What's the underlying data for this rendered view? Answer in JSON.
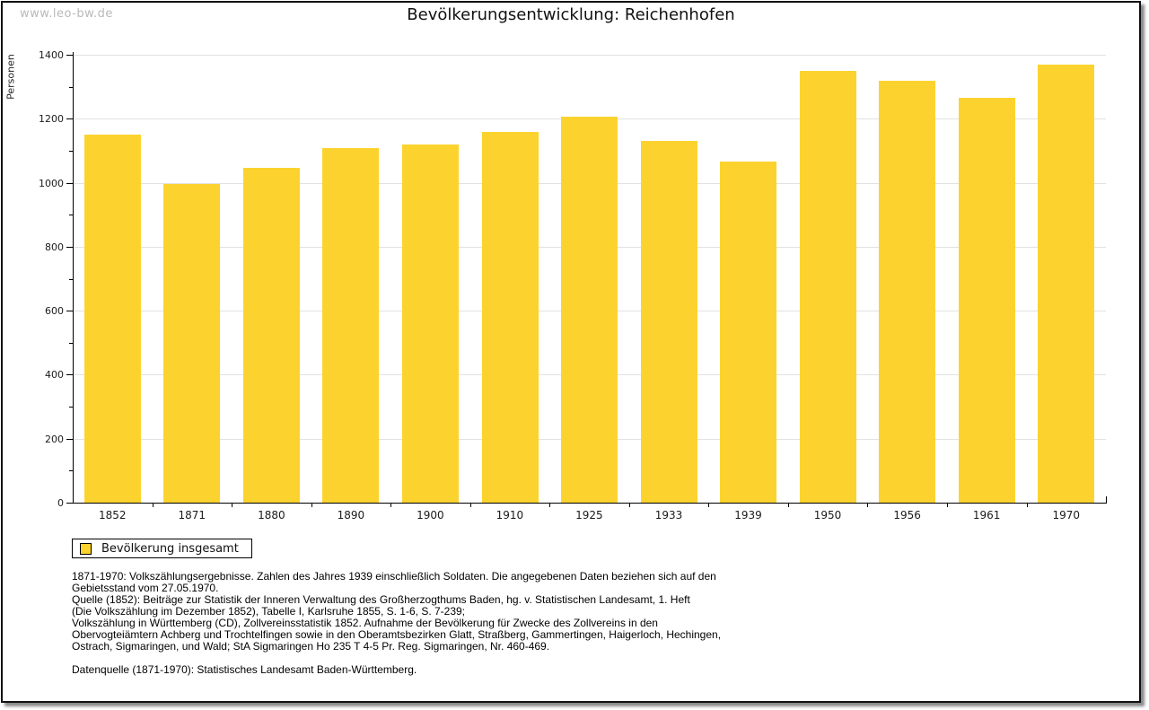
{
  "watermark": "www.leo-bw.de",
  "title": "Bevölkerungsentwicklung: Reichenhofen",
  "colors": {
    "bar": "#FCD32E",
    "gridline": "#E2E2E2",
    "axis": "#000000",
    "watermark": "#B9B9B9",
    "frame_border": "#111111"
  },
  "chart_data": {
    "type": "bar",
    "title": "Bevölkerungsentwicklung: Reichenhofen",
    "xlabel": "",
    "ylabel": "Personen",
    "categories": [
      "1852",
      "1871",
      "1880",
      "1890",
      "1900",
      "1910",
      "1925",
      "1933",
      "1939",
      "1950",
      "1956",
      "1961",
      "1970"
    ],
    "values": [
      1150,
      995,
      1046,
      1108,
      1120,
      1158,
      1206,
      1131,
      1066,
      1351,
      1319,
      1265,
      1368
    ],
    "ylim": [
      0,
      1400
    ],
    "ytick_step": 200,
    "y_minor_step": 100,
    "grid": true,
    "legend_position": "bottom-left",
    "series_name": "Bevölkerung insgesamt",
    "bar_color": "#FCD32E"
  },
  "legend": {
    "label": "Bevölkerung insgesamt",
    "swatch_color": "#FCD32E"
  },
  "footnotes": {
    "lines": [
      "1871-1970: Volkszählungsergebnisse. Zahlen des Jahres 1939 einschließlich Soldaten. Die angegebenen Daten beziehen sich auf den",
      "Gebietsstand vom 27.05.1970.",
      "Quelle (1852): Beiträge zur Statistik der Inneren Verwaltung des Großherzogthums Baden, hg. v. Statistischen Landesamt, 1. Heft",
      "(Die Volkszählung im Dezember 1852), Tabelle I, Karlsruhe 1855, S. 1-6, S. 7-239;",
      "Volkszählung in Württemberg (CD), Zollvereinsstatistik 1852. Aufnahme der Bevölkerung für Zwecke des Zollvereins in den",
      "Obervogteiämtern Achberg und Trochtelfingen sowie in den Oberamtsbezirken Glatt, Straßberg, Gammertingen, Haigerloch, Hechingen,",
      "Ostrach, Sigmaringen, und Wald; StA Sigmaringen Ho 235 T 4-5 Pr. Reg. Sigmaringen, Nr. 460-469."
    ],
    "datenquelle": "Datenquelle (1871-1970): Statistisches Landesamt Baden-Württemberg."
  }
}
